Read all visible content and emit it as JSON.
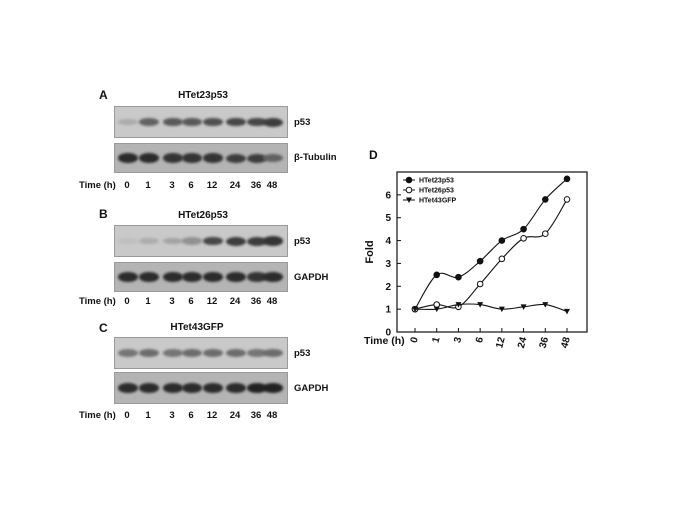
{
  "panels": [
    {
      "letter": "A",
      "title": "HTet23p53",
      "rows": [
        "p53",
        "β-Tubulin"
      ],
      "time_label": "Time (h)",
      "times": [
        "0",
        "1",
        "3",
        "6",
        "12",
        "24",
        "36",
        "48"
      ],
      "band_intensity": [
        [
          0.15,
          0.55,
          0.6,
          0.6,
          0.65,
          0.7,
          0.7,
          0.75
        ],
        [
          0.85,
          0.85,
          0.8,
          0.8,
          0.8,
          0.75,
          0.75,
          0.55
        ]
      ]
    },
    {
      "letter": "B",
      "title": "HTet26p53",
      "rows": [
        "p53",
        "GAPDH"
      ],
      "time_label": "Time (h)",
      "times": [
        "0",
        "1",
        "3",
        "6",
        "12",
        "24",
        "36",
        "48"
      ],
      "band_intensity": [
        [
          0.05,
          0.15,
          0.2,
          0.3,
          0.7,
          0.75,
          0.75,
          0.8
        ],
        [
          0.85,
          0.85,
          0.85,
          0.85,
          0.85,
          0.85,
          0.8,
          0.85
        ]
      ]
    },
    {
      "letter": "C",
      "title": "HTet43GFP",
      "rows": [
        "p53",
        "GAPDH"
      ],
      "time_label": "Time (h)",
      "times": [
        "0",
        "1",
        "3",
        "6",
        "12",
        "24",
        "36",
        "48"
      ],
      "band_intensity": [
        [
          0.45,
          0.5,
          0.45,
          0.5,
          0.5,
          0.5,
          0.45,
          0.5
        ],
        [
          0.85,
          0.85,
          0.85,
          0.85,
          0.85,
          0.85,
          0.9,
          0.9
        ]
      ]
    }
  ],
  "chart_data": {
    "type": "line",
    "panel_letter": "D",
    "ylabel": "Fold",
    "xlabel": "Time (h)",
    "categories": [
      "0",
      "1",
      "3",
      "6",
      "12",
      "24",
      "36",
      "48"
    ],
    "ylim": [
      0,
      7
    ],
    "yticks": [
      "0",
      "1",
      "2",
      "3",
      "4",
      "5",
      "6"
    ],
    "grid": false,
    "legend_position": "top-left",
    "series": [
      {
        "name": "HTet23p53",
        "marker": "filled-circle",
        "values": [
          1.0,
          2.5,
          2.4,
          3.1,
          4.0,
          4.5,
          5.8,
          6.7
        ]
      },
      {
        "name": "HTet26p53",
        "marker": "open-circle",
        "values": [
          1.0,
          1.2,
          1.1,
          2.1,
          3.2,
          4.1,
          4.3,
          5.8
        ]
      },
      {
        "name": "HTet43GFP",
        "marker": "filled-triangle-down",
        "values": [
          1.0,
          1.0,
          1.2,
          1.2,
          1.0,
          1.1,
          1.2,
          0.9
        ]
      }
    ]
  }
}
